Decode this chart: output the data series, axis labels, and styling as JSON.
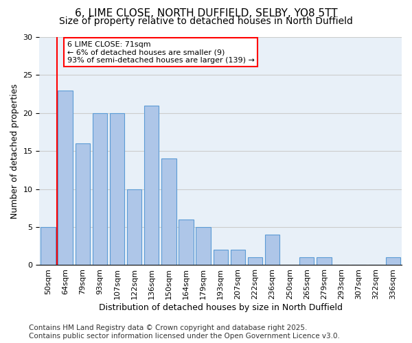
{
  "title_line1": "6, LIME CLOSE, NORTH DUFFIELD, SELBY, YO8 5TT",
  "title_line2": "Size of property relative to detached houses in North Duffield",
  "xlabel": "Distribution of detached houses by size in North Duffield",
  "ylabel": "Number of detached properties",
  "categories": [
    "50sqm",
    "64sqm",
    "79sqm",
    "93sqm",
    "107sqm",
    "122sqm",
    "136sqm",
    "150sqm",
    "164sqm",
    "179sqm",
    "193sqm",
    "207sqm",
    "222sqm",
    "236sqm",
    "250sqm",
    "265sqm",
    "279sqm",
    "293sqm",
    "307sqm",
    "322sqm",
    "336sqm"
  ],
  "values": [
    5,
    23,
    16,
    20,
    20,
    10,
    21,
    14,
    6,
    5,
    2,
    2,
    1,
    4,
    0,
    1,
    1,
    0,
    0,
    0,
    1
  ],
  "bar_color": "#aec6e8",
  "bar_edge_color": "#5b9bd5",
  "grid_color": "#cccccc",
  "background_color": "#e8f0f8",
  "vline_color": "red",
  "vline_x": 0.5,
  "annotation_text": "6 LIME CLOSE: 71sqm\n← 6% of detached houses are smaller (9)\n93% of semi-detached houses are larger (139) →",
  "annotation_box_color": "white",
  "annotation_box_edge": "red",
  "ylim": [
    0,
    30
  ],
  "yticks": [
    0,
    5,
    10,
    15,
    20,
    25,
    30
  ],
  "footer": "Contains HM Land Registry data © Crown copyright and database right 2025.\nContains public sector information licensed under the Open Government Licence v3.0.",
  "footer_fontsize": 7.5,
  "title_fontsize": 11,
  "subtitle_fontsize": 10,
  "xlabel_fontsize": 9,
  "ylabel_fontsize": 9,
  "tick_fontsize": 8,
  "annot_fontsize": 8
}
